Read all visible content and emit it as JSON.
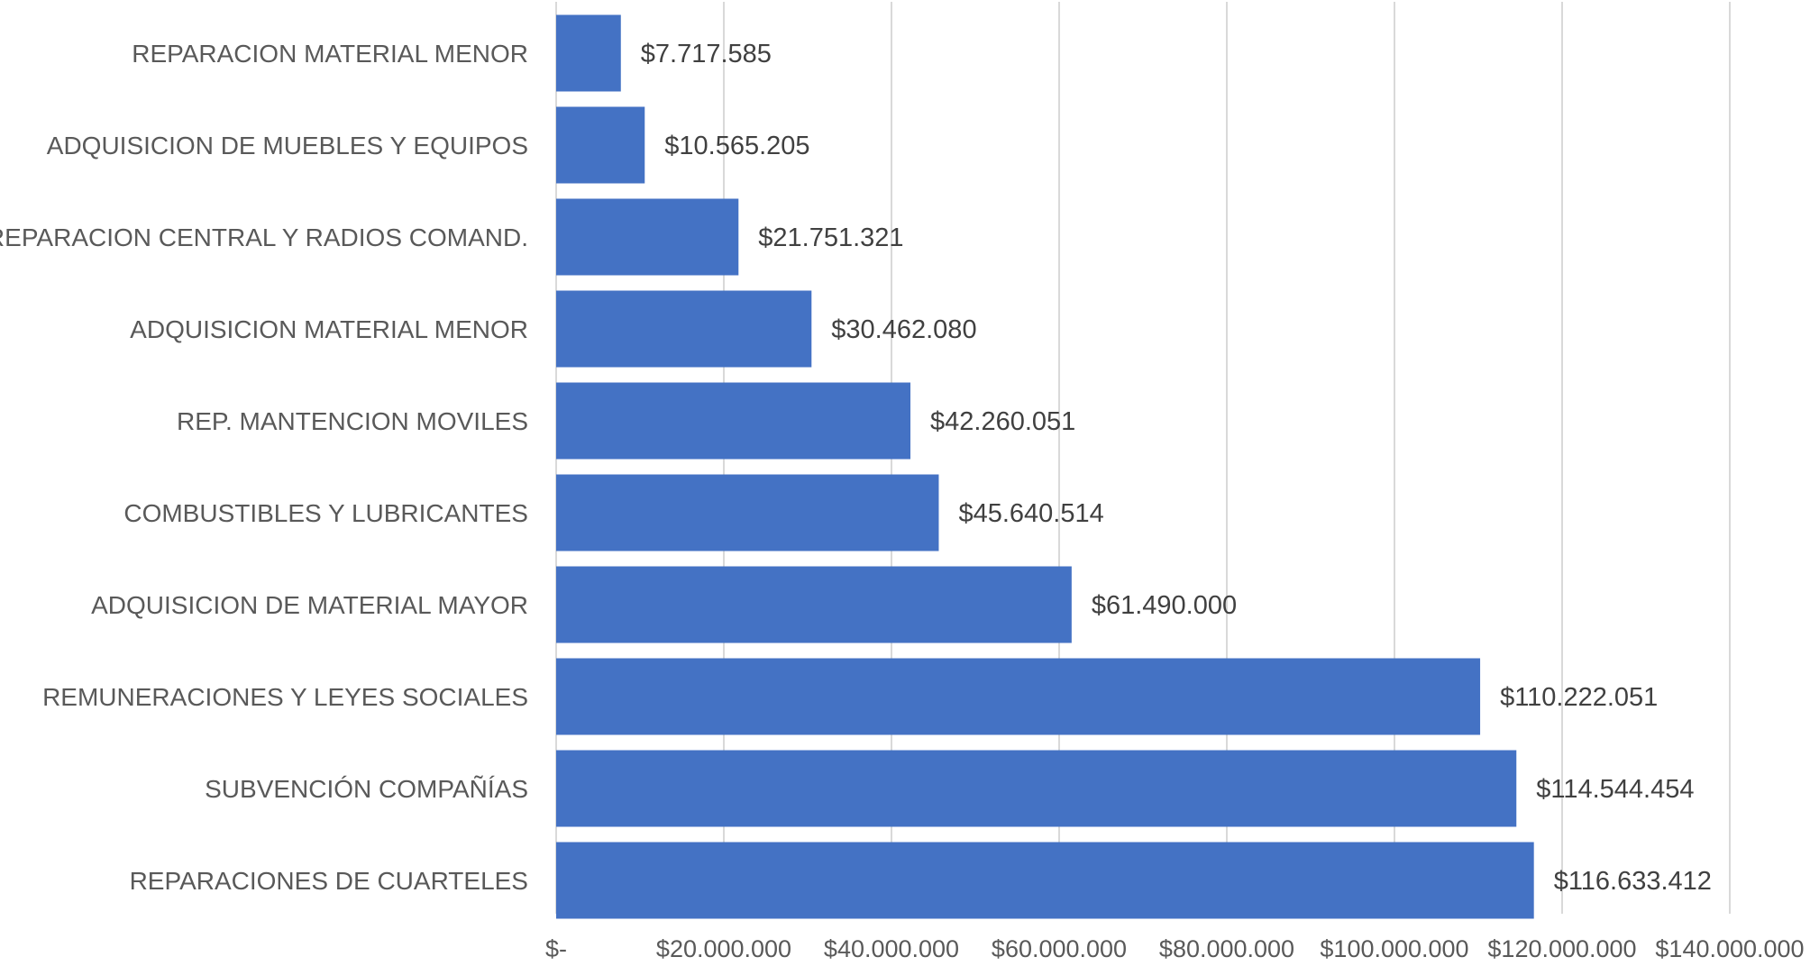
{
  "chart_data": {
    "type": "bar",
    "orientation": "horizontal",
    "title": "",
    "xlabel": "",
    "ylabel": "",
    "categories": [
      "REPARACION MATERIAL MENOR",
      "ADQUISICION DE MUEBLES Y EQUIPOS",
      "REPARACION CENTRAL Y RADIOS COMAND.",
      "ADQUISICION MATERIAL MENOR",
      "REP. MANTENCION MOVILES",
      "COMBUSTIBLES Y LUBRICANTES",
      "ADQUISICION DE MATERIAL MAYOR",
      "REMUNERACIONES Y LEYES SOCIALES",
      "SUBVENCIÓN COMPAÑÍAS",
      "REPARACIONES DE CUARTELES"
    ],
    "values": [
      7717585,
      10565205,
      21751321,
      30462080,
      42260051,
      45640514,
      61490000,
      110222051,
      114544454,
      116633412
    ],
    "data_labels": [
      "$7.717.585",
      "$10.565.205",
      "$21.751.321",
      "$30.462.080",
      "$42.260.051",
      "$45.640.514",
      "$61.490.000",
      "$110.222.051",
      "$114.544.454",
      "$116.633.412"
    ],
    "xlim": [
      0,
      140000000
    ],
    "x_ticks": [
      0,
      20000000,
      40000000,
      60000000,
      80000000,
      100000000,
      120000000,
      140000000
    ],
    "x_tick_labels": [
      "$-",
      "$20.000.000",
      "$40.000.000",
      "$60.000.000",
      "$80.000.000",
      "$100.000.000",
      "$120.000.000",
      "$140.000.000"
    ],
    "grid": "vertical",
    "legend": "none",
    "colors": {
      "bar": "#4472c4",
      "grid": "#d9d9d9",
      "label": "#595959",
      "data_label": "#404040"
    }
  }
}
